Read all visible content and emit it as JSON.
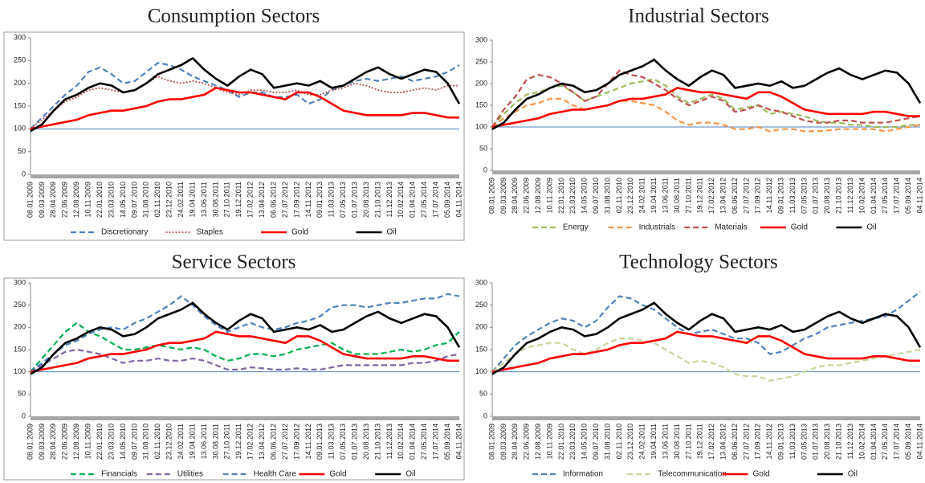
{
  "chart_data": [
    {
      "type": "line",
      "title": "Consumption Sectors",
      "ylim": [
        0,
        300
      ],
      "yticks": [
        0,
        50,
        100,
        150,
        200,
        250,
        300
      ],
      "hline": 100,
      "categories": [
        "08.01.2009",
        "09.03.2009",
        "28.04.2009",
        "22.06.2009",
        "12.08.2009",
        "10.11.2009",
        "22.01.2010",
        "23.03.2010",
        "14.05.2010",
        "09.07.2010",
        "31.08.2010",
        "02.11.2010",
        "23.12.2010",
        "24.02.2011",
        "19.04.2011",
        "13.06.2011",
        "30.08.2011",
        "27.10.2011",
        "19.12.2011",
        "17.02.2012",
        "13.04.2012",
        "06.06.2012",
        "27.07.2012",
        "17.09.2012",
        "14.11.2012",
        "09.01.2013",
        "11.03.2013",
        "07.05.2013",
        "01.07.2013",
        "20.08.2013",
        "21.10.2013",
        "11.12.2013",
        "10.02.2014",
        "01.04.2014",
        "27.05.2014",
        "17.07.2014",
        "05.09.2014",
        "04.11.2014"
      ],
      "series": [
        {
          "name": "Discretionary",
          "color": "#4f81bd",
          "style": "dashed",
          "values": [
            100,
            125,
            150,
            175,
            195,
            225,
            235,
            220,
            200,
            205,
            225,
            245,
            240,
            230,
            215,
            205,
            195,
            185,
            170,
            180,
            180,
            170,
            170,
            175,
            155,
            165,
            185,
            195,
            205,
            210,
            205,
            210,
            215,
            205,
            210,
            215,
            225,
            240
          ]
        },
        {
          "name": "Staples",
          "color": "#c0504d",
          "style": "dotted",
          "values": [
            100,
            120,
            140,
            160,
            170,
            185,
            190,
            185,
            180,
            185,
            200,
            215,
            205,
            200,
            205,
            200,
            190,
            180,
            175,
            185,
            185,
            180,
            180,
            185,
            175,
            175,
            185,
            190,
            200,
            195,
            185,
            180,
            180,
            185,
            190,
            185,
            195,
            195
          ]
        },
        {
          "name": "Gold",
          "color": "#ff0000",
          "style": "solid",
          "values": [
            100,
            105,
            110,
            115,
            120,
            130,
            135,
            140,
            140,
            145,
            150,
            160,
            165,
            165,
            170,
            175,
            190,
            185,
            180,
            180,
            175,
            170,
            165,
            180,
            180,
            170,
            155,
            140,
            135,
            130,
            130,
            130,
            130,
            135,
            135,
            130,
            125,
            125
          ]
        },
        {
          "name": "Oil",
          "color": "#000000",
          "style": "solid",
          "values": [
            95,
            110,
            140,
            165,
            175,
            190,
            200,
            195,
            180,
            185,
            200,
            220,
            230,
            240,
            255,
            230,
            210,
            195,
            215,
            230,
            220,
            190,
            195,
            200,
            195,
            205,
            190,
            195,
            210,
            225,
            235,
            220,
            210,
            220,
            230,
            225,
            200,
            155
          ]
        }
      ]
    },
    {
      "type": "line",
      "title": "Industrial Sectors",
      "ylim": [
        0,
        300
      ],
      "yticks": [
        0,
        50,
        100,
        150,
        200,
        250,
        300
      ],
      "hline": 100,
      "categories": [
        "08.01.2009",
        "09.03.2009",
        "28.04.2009",
        "22.06.2009",
        "12.08.2009",
        "10.11.2009",
        "22.01.2010",
        "23.03.2010",
        "14.05.2010",
        "09.07.2010",
        "31.08.2010",
        "02.11.2010",
        "23.12.2010",
        "24.02.2011",
        "19.04.2011",
        "13.06.2011",
        "30.08.2011",
        "27.10.2011",
        "19.12.2011",
        "17.02.2012",
        "13.04.2012",
        "06.06.2012",
        "27.07.2012",
        "17.09.2012",
        "14.11.2012",
        "09.01.2013",
        "11.03.2013",
        "07.05.2013",
        "01.07.2013",
        "20.08.2013",
        "21.10.2013",
        "11.12.2013",
        "10.02.2014",
        "01.04.2014",
        "27.05.2014",
        "17.07.2014",
        "05.09.2014",
        "04.11.2014"
      ],
      "series": [
        {
          "name": "Energy",
          "color": "#9bbb59",
          "style": "dashed",
          "values": [
            100,
            130,
            155,
            175,
            180,
            190,
            195,
            180,
            160,
            170,
            180,
            190,
            200,
            205,
            210,
            195,
            170,
            155,
            165,
            175,
            165,
            140,
            145,
            150,
            130,
            135,
            130,
            125,
            115,
            110,
            110,
            105,
            105,
            100,
            100,
            100,
            105,
            105
          ]
        },
        {
          "name": "Industrials",
          "color": "#f79646",
          "style": "dashed",
          "values": [
            100,
            120,
            135,
            150,
            155,
            165,
            165,
            150,
            140,
            145,
            150,
            160,
            160,
            155,
            150,
            135,
            115,
            105,
            110,
            110,
            105,
            95,
            95,
            100,
            90,
            95,
            95,
            90,
            90,
            92,
            95,
            95,
            95,
            95,
            90,
            95,
            100,
            105
          ]
        },
        {
          "name": "Materials",
          "color": "#c0504d",
          "style": "dashed",
          "values": [
            100,
            140,
            170,
            210,
            220,
            215,
            200,
            180,
            160,
            170,
            200,
            230,
            220,
            215,
            200,
            185,
            165,
            150,
            160,
            170,
            160,
            135,
            140,
            150,
            140,
            135,
            125,
            115,
            110,
            110,
            115,
            115,
            110,
            110,
            110,
            115,
            120,
            125
          ]
        },
        {
          "name": "Gold",
          "color": "#ff0000",
          "style": "solid",
          "values": [
            100,
            105,
            110,
            115,
            120,
            130,
            135,
            140,
            140,
            145,
            150,
            160,
            165,
            165,
            170,
            175,
            190,
            185,
            180,
            180,
            175,
            170,
            165,
            180,
            180,
            170,
            155,
            140,
            135,
            130,
            130,
            130,
            130,
            135,
            135,
            130,
            125,
            125
          ]
        },
        {
          "name": "Oil",
          "color": "#000000",
          "style": "solid",
          "values": [
            95,
            110,
            140,
            165,
            175,
            190,
            200,
            195,
            180,
            185,
            200,
            220,
            230,
            240,
            255,
            230,
            210,
            195,
            215,
            230,
            220,
            190,
            195,
            200,
            195,
            205,
            190,
            195,
            210,
            225,
            235,
            220,
            210,
            220,
            230,
            225,
            200,
            155
          ]
        }
      ]
    },
    {
      "type": "line",
      "title": "Service Sectors",
      "ylim": [
        0,
        300
      ],
      "yticks": [
        0,
        50,
        100,
        150,
        200,
        250,
        300
      ],
      "hline": 100,
      "categories": [
        "08.01.2009",
        "09.03.2009",
        "28.04.2009",
        "22.06.2009",
        "12.08.2009",
        "10.11.2009",
        "22.01.2010",
        "23.03.2010",
        "14.05.2010",
        "09.07.2010",
        "31.08.2010",
        "02.11.2010",
        "23.12.2010",
        "24.02.2011",
        "19.04.2011",
        "13.06.2011",
        "30.08.2011",
        "27.10.2011",
        "19.12.2011",
        "17.02.2012",
        "13.04.2012",
        "06.06.2012",
        "27.07.2012",
        "17.09.2012",
        "14.11.2012",
        "09.01.2013",
        "11.03.2013",
        "07.05.2013",
        "01.07.2013",
        "20.08.2013",
        "21.10.2013",
        "11.12.2013",
        "10.02.2014",
        "01.04.2014",
        "27.05.2014",
        "17.07.2014",
        "05.09.2014",
        "04.11.2014"
      ],
      "series": [
        {
          "name": "Financials",
          "color": "#00b050",
          "style": "dashed",
          "values": [
            100,
            130,
            160,
            190,
            210,
            190,
            180,
            165,
            150,
            150,
            155,
            160,
            155,
            150,
            155,
            150,
            135,
            125,
            130,
            140,
            140,
            135,
            140,
            150,
            155,
            160,
            165,
            150,
            140,
            140,
            140,
            145,
            150,
            145,
            150,
            160,
            165,
            190
          ]
        },
        {
          "name": "Utilities",
          "color": "#8064a2",
          "style": "dashed",
          "values": [
            100,
            115,
            130,
            145,
            150,
            145,
            140,
            130,
            120,
            125,
            125,
            130,
            125,
            125,
            130,
            125,
            115,
            105,
            105,
            110,
            108,
            105,
            105,
            108,
            105,
            105,
            110,
            115,
            115,
            115,
            115,
            115,
            115,
            120,
            120,
            125,
            135,
            140
          ]
        },
        {
          "name": "Health Care",
          "color": "#4f81bd",
          "style": "dashed",
          "values": [
            100,
            120,
            140,
            160,
            170,
            185,
            195,
            200,
            195,
            210,
            220,
            235,
            250,
            270,
            250,
            225,
            205,
            190,
            200,
            210,
            200,
            195,
            200,
            210,
            215,
            225,
            245,
            250,
            250,
            245,
            250,
            255,
            255,
            260,
            265,
            265,
            275,
            270
          ]
        },
        {
          "name": "Gold",
          "color": "#ff0000",
          "style": "solid",
          "values": [
            100,
            105,
            110,
            115,
            120,
            130,
            135,
            140,
            140,
            145,
            150,
            160,
            165,
            165,
            170,
            175,
            190,
            185,
            180,
            180,
            175,
            170,
            165,
            180,
            180,
            170,
            155,
            140,
            135,
            130,
            130,
            130,
            130,
            135,
            135,
            130,
            125,
            125
          ]
        },
        {
          "name": "Oil",
          "color": "#000000",
          "style": "solid",
          "values": [
            95,
            110,
            140,
            165,
            175,
            190,
            200,
            195,
            180,
            185,
            200,
            220,
            230,
            240,
            255,
            230,
            210,
            195,
            215,
            230,
            220,
            190,
            195,
            200,
            195,
            205,
            190,
            195,
            210,
            225,
            235,
            220,
            210,
            220,
            230,
            225,
            200,
            155
          ]
        }
      ]
    },
    {
      "type": "line",
      "title": "Technology Sectors",
      "ylim": [
        0,
        300
      ],
      "yticks": [
        0,
        50,
        100,
        150,
        200,
        250,
        300
      ],
      "hline": 100,
      "categories": [
        "08.01.2009",
        "09.03.2009",
        "28.04.2009",
        "22.06.2009",
        "12.08.2009",
        "10.11.2009",
        "22.01.2010",
        "23.03.2010",
        "14.05.2010",
        "09.07.2010",
        "31.08.2010",
        "02.11.2010",
        "23.12.2010",
        "24.02.2011",
        "19.04.2011",
        "13.06.2011",
        "30.08.2011",
        "27.10.2011",
        "19.12.2011",
        "17.02.2012",
        "13.04.2012",
        "06.06.2012",
        "27.07.2012",
        "17.09.2012",
        "14.11.2012",
        "09.01.2013",
        "11.03.2013",
        "07.05.2013",
        "01.07.2013",
        "20.08.2013",
        "21.10.2013",
        "11.12.2013",
        "10.02.2014",
        "01.04.2014",
        "27.05.2014",
        "17.07.2014",
        "05.09.2014",
        "04.11.2014"
      ],
      "series": [
        {
          "name": "Information",
          "color": "#4f81bd",
          "style": "dashed",
          "values": [
            100,
            130,
            160,
            180,
            195,
            210,
            220,
            215,
            200,
            215,
            245,
            270,
            265,
            250,
            240,
            220,
            200,
            185,
            190,
            195,
            185,
            175,
            175,
            165,
            140,
            145,
            160,
            175,
            185,
            200,
            205,
            210,
            215,
            220,
            225,
            240,
            260,
            280
          ]
        },
        {
          "name": "Telecommunication",
          "color": "#c3d69b",
          "style": "dashed",
          "values": [
            100,
            120,
            140,
            155,
            160,
            165,
            165,
            150,
            140,
            150,
            165,
            175,
            175,
            170,
            165,
            150,
            135,
            120,
            125,
            120,
            110,
            95,
            90,
            90,
            80,
            85,
            90,
            100,
            110,
            115,
            115,
            120,
            125,
            130,
            135,
            140,
            145,
            150
          ]
        },
        {
          "name": "Gold",
          "color": "#ff0000",
          "style": "solid",
          "values": [
            100,
            105,
            110,
            115,
            120,
            130,
            135,
            140,
            140,
            145,
            150,
            160,
            165,
            165,
            170,
            175,
            190,
            185,
            180,
            180,
            175,
            170,
            165,
            180,
            180,
            170,
            155,
            140,
            135,
            130,
            130,
            130,
            130,
            135,
            135,
            130,
            125,
            125
          ]
        },
        {
          "name": "Oil",
          "color": "#000000",
          "style": "solid",
          "values": [
            95,
            110,
            140,
            165,
            175,
            190,
            200,
            195,
            180,
            185,
            200,
            220,
            230,
            240,
            255,
            230,
            210,
            195,
            215,
            230,
            220,
            190,
            195,
            200,
            195,
            205,
            190,
            195,
            210,
            225,
            235,
            220,
            210,
            220,
            230,
            225,
            200,
            155
          ]
        }
      ]
    }
  ]
}
